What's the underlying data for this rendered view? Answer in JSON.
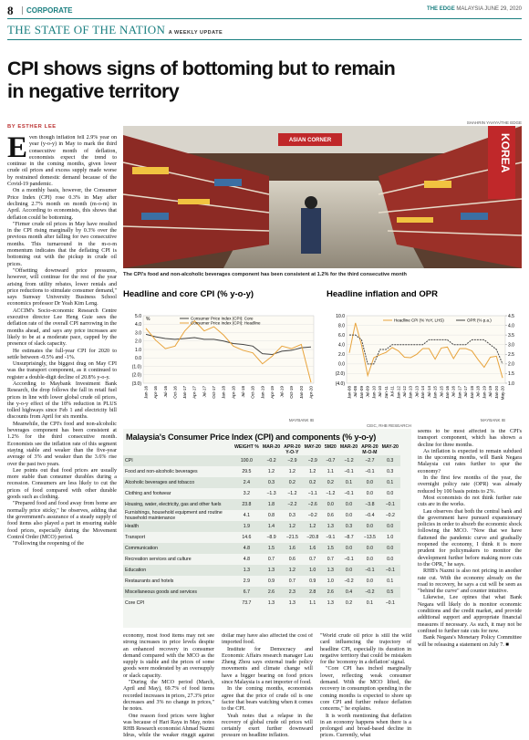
{
  "header": {
    "page": "8",
    "section": "CORPORATE",
    "masthead": "THE EDGE",
    "paper": "MALAYSIA",
    "date": "JUNE 29, 2020"
  },
  "banner": {
    "title": "THE STATE OF THE NATION",
    "subtitle": "A WEEKLY UPDATE"
  },
  "headline": "CPI shows signs of bottoming but to remain in negative territory",
  "byline": "BY ESTHER LEE",
  "photo": {
    "credit": "SHAHRIN YAHYA/THE EDGE",
    "caption": "The CPI's food and non-alcoholic beverages component has been consistent at 1.2% for the third consecutive month",
    "signs": [
      "ASIAN CORNER",
      "KOREA"
    ]
  },
  "article": {
    "left": [
      "Even though inflation fell 2.9% year on year (y-o-y) in May to mark the third consecutive month of deflation, economists expect the trend to continue in the coming months, given lower crude oil prices and excess supply made worse by restrained domestic demand because of the Covid-19 pandemic.",
      "On a monthly basis, however, the Consumer Price Index (CPI) rose 0.3% in May after declining 2.7% month on month (m-o-m) in April. According to economists, this shows that deflation could be bottoming.",
      "\"Firmer crude oil prices in May have resulted in the CPI rising marginally by 0.3% over the previous month after falling for two consecutive months. This turnaround in the m-o-m momentum indicates that the deflating CPI is bottoming out with the pickup in crude oil prices.",
      "\"Offsetting downward price pressures, however, will continue for the rest of the year arising from utility rebates, lower rentals and price reductions to stimulate consumer demand,\" says Sunway University Business School economics professor Dr Yeah Kim Leng.",
      "ACCIM's Socio-economic Research Centre executive director Lee Heng Guie sees the deflation rate of the overall CPI narrowing in the months ahead, and says any price increases are likely to be at a moderate pace, capped by the presence of slack capacity.",
      "He estimates the full-year CPI for 2020 to settle between -0.5% and -1%.",
      "Unsurprisingly, the biggest drag on May CPI was the transport component, as it continued to register a double-digit decline of 20.8% y-o-y.",
      "According to Maybank Investment Bank Research, the drop follows the fall in retail fuel prices in line with lower global crude oil prices, the y-o-y effect of the 18% reduction in PLUS tolled highways since Feb 1 and electricity bill discounts from April for six months.",
      "Meanwhile, the CPI's food and non-alcoholic beverages component has been consistent at 1.2% for the third consecutive month. Economists see the inflation rate of this segment staying stable and weaker than the five-year average of 3% and weaker than the 3.6% rise over the past two years.",
      "Lee points out that food prices are usually more stable than consumer durables during a recession. Consumers are less likely to cut the prices of food compared with other durable goods such as clothing.",
      "\"Prepared food and food away from home are normally price sticky,\" he observes, adding that the government's assurance of a steady supply of food items also played a part in ensuring stable food prices, especially during the Movement Control Order (MCO) period.",
      "\"Following the reopening of the"
    ],
    "col1": [
      "economy, most food items may not see strong increases in price levels despite an enhanced recovery in consumer demand compared with the MCO as the supply is stable and the prices of some goods were moderated by an oversupply or slack capacity.",
      "\"During the MCO period (March, April and May), 69.7% of food items recorded increases in prices, 27.3% price decreases and 3% no change in prices,\" he notes.",
      "One reason food prices were higher was because of Hari Raya in May, notes RHB Research economist Ahmad Nazmi Idrus, while the weaker ringgit against the US"
    ],
    "col2": [
      "dollar may have also affected the cost of imported food.",
      "Institute for Democracy and Economic Affairs research manager Lau Zheng Zhou says external trade policy movements and climate change will have a bigger bearing on food prices since Malaysia is a net importer of food.",
      "In the coming months, economists agree that the price of crude oil is one factor that bears watching when it comes to the CPI.",
      "Yeah notes that a relapse in the recovery of global crude oil prices will certainly exert further downward pressure on headline inflation."
    ],
    "col3": [
      "\"World crude oil price is still the wild card influencing the trajectory of headline CPI, especially its duration in negative territory that could be mistaken for the 'economy in a deflation' signal.",
      "\"Core CPI has inched marginally lower, reflecting weak consumer demand. With the MCO lifted, the recovery in consumption spending in the coming months is expected to shore up core CPI and further reduce deflation concerns,\" he explains.",
      "It is worth mentioning that deflation in an economy happens when there is a prolonged and broad-based decline in prices. Currently, what"
    ],
    "right": [
      "seems to be most affected is the CPI's transport component, which has shown a decline for three months.",
      "As inflation is expected to remain subdued in the upcoming months, will Bank Negara Malaysia cut rates further to spur the economy?",
      "In the first few months of the year, the overnight policy rate (OPR) was already reduced by 100 basis points to 2%.",
      "Most economists do not think further rate cuts are in the works.",
      "Lau observes that both the central bank and the government have pursued expansionary policies in order to absorb the economic shock following the MCO. \"Now that we have flattened the pandemic curve and gradually reopened the economy, I think it is more prudent for policymakers to monitor the development further before making more cuts to the OPR,\" he says.",
      "RHB's Nazmi is also not pricing in another rate cut. With the economy already on the road to recovery, he says a cut will be seen as \"behind the curve\" and counter intuitive.",
      "Likewise, Lee opines that what Bank Negara will likely do is monitor economic conditions and the credit market, and provide additional support and appropriate financial measures if necessary. As such, it may not be confined to further rate cuts for now.",
      "Bank Negara's Monetary Policy Committee will be releasing a statement on July 7. ■"
    ]
  },
  "charts": [
    {
      "type": "line",
      "title": "Headline and core CPI (% y-o-y)",
      "unit": "%",
      "source": "MAYBANK IB",
      "categories": [
        "Jan-16",
        "Apr-16",
        "Jul-16",
        "Oct-16",
        "Jan-17",
        "Apr-17",
        "Jul-17",
        "Oct-17",
        "Jan-18",
        "Apr-18",
        "Jul-18",
        "Oct-18",
        "Jan-19",
        "Apr-19",
        "Jul-19",
        "Oct-19",
        "Jan-20",
        "Apr-20"
      ],
      "series": [
        {
          "name": "Consumer Price Index (CPI): Core",
          "color": "#444444",
          "values": [
            2.8,
            2.5,
            2.3,
            2.2,
            2.3,
            2.4,
            2.2,
            2.2,
            2.0,
            1.7,
            1.6,
            1.4,
            0.5,
            0.4,
            0.8,
            0.9,
            1.2,
            1.3
          ]
        },
        {
          "name": "Consumer Price Index (CPI): Headline",
          "color": "#e8a33b",
          "values": [
            3.5,
            2.1,
            1.1,
            1.4,
            3.2,
            4.4,
            3.2,
            3.7,
            2.7,
            1.4,
            0.9,
            0.6,
            -0.7,
            0.2,
            1.4,
            1.1,
            1.6,
            -2.9
          ]
        }
      ],
      "ylim": [
        -3,
        5
      ],
      "yticks": [
        {
          "value": 5,
          "label": "5.0"
        },
        {
          "value": 4,
          "label": "4.0"
        },
        {
          "value": 3,
          "label": "3.0"
        },
        {
          "value": 2,
          "label": "2.0"
        },
        {
          "value": 1,
          "label": "1.0"
        },
        {
          "value": 0,
          "label": "0.0"
        },
        {
          "value": -1,
          "label": "(1.0)"
        },
        {
          "value": -2,
          "label": "(2.0)"
        },
        {
          "value": -3,
          "label": "(3.0)"
        }
      ]
    },
    {
      "type": "line",
      "title": "Headline inflation and OPR",
      "source": "MAYBANK IB",
      "categories": [
        "Jan-08",
        "Jul-08",
        "Jan-09",
        "Jul-09",
        "Jan-10",
        "Jul-10",
        "Jan-11",
        "Jul-11",
        "Jan-12",
        "Jul-12",
        "Jan-13",
        "Jul-13",
        "Jan-14",
        "Jul-14",
        "Jan-15",
        "Jul-15",
        "Jan-16",
        "Jul-16",
        "Jan-17",
        "Jul-17",
        "Jan-18",
        "Jul-18",
        "Jan-19",
        "Jul-19",
        "Jan-20",
        "May-20"
      ],
      "series": [
        {
          "name": "Headline CPI (% YoY, LHS)",
          "color": "#e8a33b",
          "values": [
            2.3,
            8.5,
            3.9,
            -2.4,
            1.3,
            1.9,
            2.4,
            3.4,
            2.7,
            1.4,
            1.3,
            2.0,
            3.2,
            3.2,
            1.0,
            3.3,
            3.5,
            1.1,
            3.2,
            3.2,
            2.7,
            0.9,
            -0.7,
            1.4,
            1.6,
            -2.9
          ]
        },
        {
          "name": "OPR (% p.a.)",
          "color": "#444444",
          "axis": "y2",
          "values": [
            3.5,
            3.5,
            3.25,
            2.0,
            2.0,
            2.75,
            2.75,
            3.0,
            3.0,
            3.0,
            3.0,
            3.0,
            3.0,
            3.25,
            3.25,
            3.25,
            3.25,
            3.0,
            3.0,
            3.0,
            3.25,
            3.25,
            3.25,
            3.0,
            2.75,
            2.0
          ]
        }
      ],
      "ylim": [
        -4,
        10
      ],
      "yticks": [
        {
          "value": 10,
          "label": "10.0"
        },
        {
          "value": 8,
          "label": "8.0"
        },
        {
          "value": 6,
          "label": "6.0"
        },
        {
          "value": 4,
          "label": "4.0"
        },
        {
          "value": 2,
          "label": "2.0"
        },
        {
          "value": 0,
          "label": "0.0"
        },
        {
          "value": -2,
          "label": "(2.0)"
        },
        {
          "value": -4,
          "label": "(4.0)"
        }
      ],
      "y2lim": [
        1,
        4.5
      ],
      "y2ticks": [
        4.5,
        {
          "value": 4,
          "label": "4.0"
        },
        3.5,
        {
          "value": 3,
          "label": "3.0"
        },
        2.5,
        {
          "value": 2,
          "label": "2.0"
        },
        1.5,
        {
          "value": 1,
          "label": "1.0"
        }
      ]
    }
  ],
  "table": {
    "title": "Malaysia's Consumer Price Index (CPI) and components (% y-o-y)",
    "source": "CEIC, RHB RESEARCH",
    "groups": [
      "Y-O-Y",
      "M-O-M"
    ],
    "columns": [
      "WEIGHT %",
      "MAR-20",
      "APR-20",
      "MAY-20",
      "5M20",
      "MAR-20",
      "APR-20",
      "MAY-20"
    ],
    "rows": [
      [
        "CPI",
        "100.0",
        "−0.2",
        "−2.9",
        "−2.9",
        "−0.7",
        "−1.2",
        "−2.7",
        "0.3"
      ],
      [
        "Food and non-alcoholic beverages",
        "29.5",
        "1.2",
        "1.2",
        "1.2",
        "1.1",
        "−0.1",
        "−0.1",
        "0.3"
      ],
      [
        "Alcoholic beverages and tobacco",
        "2.4",
        "0.3",
        "0.2",
        "0.2",
        "0.2",
        "0.1",
        "0.0",
        "0.1"
      ],
      [
        "Clothing and footwear",
        "3.2",
        "−1.3",
        "−1.2",
        "−1.1",
        "−1.2",
        "−0.1",
        "0.0",
        "0.0"
      ],
      [
        "Housing, water, electricity, gas and other fuels",
        "23.8",
        "1.8",
        "−2.2",
        "−2.6",
        "0.0",
        "0.0",
        "−3.8",
        "−0.1"
      ],
      [
        "Furnishings, household equipment and routine household maintenance",
        "4.1",
        "0.8",
        "0.3",
        "−0.2",
        "0.6",
        "0.0",
        "−0.4",
        "−0.2"
      ],
      [
        "Health",
        "1.9",
        "1.4",
        "1.2",
        "1.2",
        "1.3",
        "0.3",
        "0.0",
        "0.0"
      ],
      [
        "Transport",
        "14.6",
        "−8.9",
        "−21.5",
        "−20.8",
        "−9.1",
        "−8.7",
        "−13.5",
        "1.0"
      ],
      [
        "Communication",
        "4.8",
        "1.5",
        "1.6",
        "1.6",
        "1.5",
        "0.0",
        "0.0",
        "0.0"
      ],
      [
        "Recreation services and culture",
        "4.8",
        "0.7",
        "0.6",
        "0.7",
        "0.7",
        "−0.1",
        "0.0",
        "0.0"
      ],
      [
        "Education",
        "1.3",
        "1.3",
        "1.2",
        "1.0",
        "1.3",
        "0.0",
        "−0.1",
        "−0.1"
      ],
      [
        "Restaurants and hotels",
        "2.9",
        "0.9",
        "0.7",
        "0.9",
        "1.0",
        "−0.2",
        "0.0",
        "0.1"
      ],
      [
        "Miscellaneous goods and services",
        "6.7",
        "2.6",
        "2.3",
        "2.8",
        "2.6",
        "0.4",
        "−0.2",
        "0.5"
      ],
      [
        "Core CPI",
        "73.7",
        "1.3",
        "1.3",
        "1.1",
        "1.3",
        "0.2",
        "0.1",
        "−0.1"
      ]
    ]
  }
}
